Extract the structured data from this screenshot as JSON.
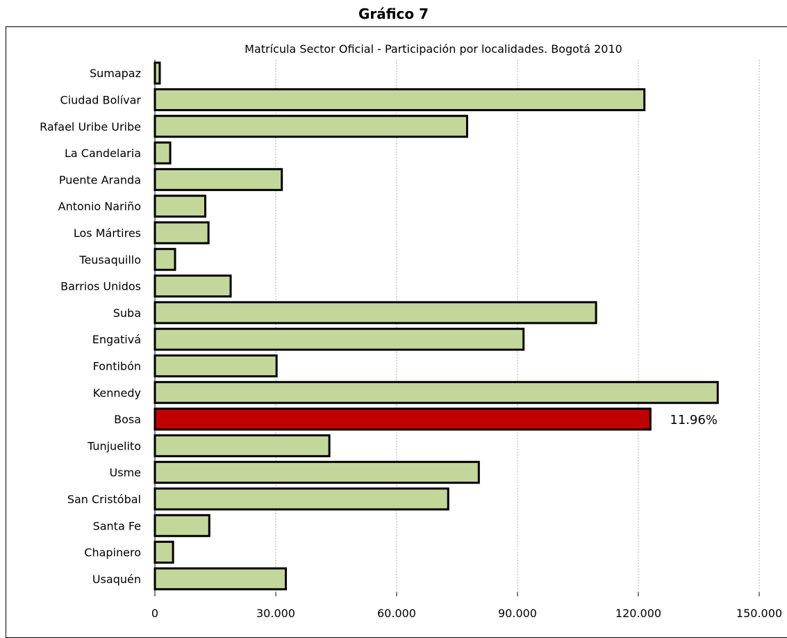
{
  "figure_label": "Gráfico 7",
  "chart_data": {
    "type": "bar",
    "orientation": "horizontal",
    "title": "Matrícula Sector Oficial - Participación por localidades.  Bogotá 2010",
    "xlabel": "",
    "ylabel": "",
    "xlim": [
      0,
      150000
    ],
    "ticks": [
      0,
      30000,
      60000,
      90000,
      120000,
      150000
    ],
    "tick_labels": [
      "0",
      "30.000",
      "60.000",
      "90.000",
      "120.000",
      "150.000"
    ],
    "grid": "vertical-dotted",
    "categories": [
      "Sumapaz",
      "Ciudad Bolívar",
      "Rafael Uribe Uribe",
      "La Candelaria",
      "Puente Aranda",
      "Antonio Nariño",
      "Los Mártires",
      "Teusaquillo",
      "Barrios Unidos",
      "Suba",
      "Engativá",
      "Fontibón",
      "Kennedy",
      "Bosa",
      "Tunjuelito",
      "Usme",
      "San Cristóbal",
      "Santa Fe",
      "Chapinero",
      "Usaquén"
    ],
    "values": [
      1200,
      121500,
      77500,
      3800,
      31500,
      12500,
      13300,
      5000,
      18800,
      109500,
      91500,
      30200,
      139700,
      123000,
      43300,
      80400,
      72800,
      13500,
      4500,
      32500
    ],
    "bar_color": "#c4d79b",
    "highlight_color": "#c00000",
    "highlight_category": "Bosa",
    "annotation": {
      "category": "Bosa",
      "text": "11.96%"
    }
  }
}
